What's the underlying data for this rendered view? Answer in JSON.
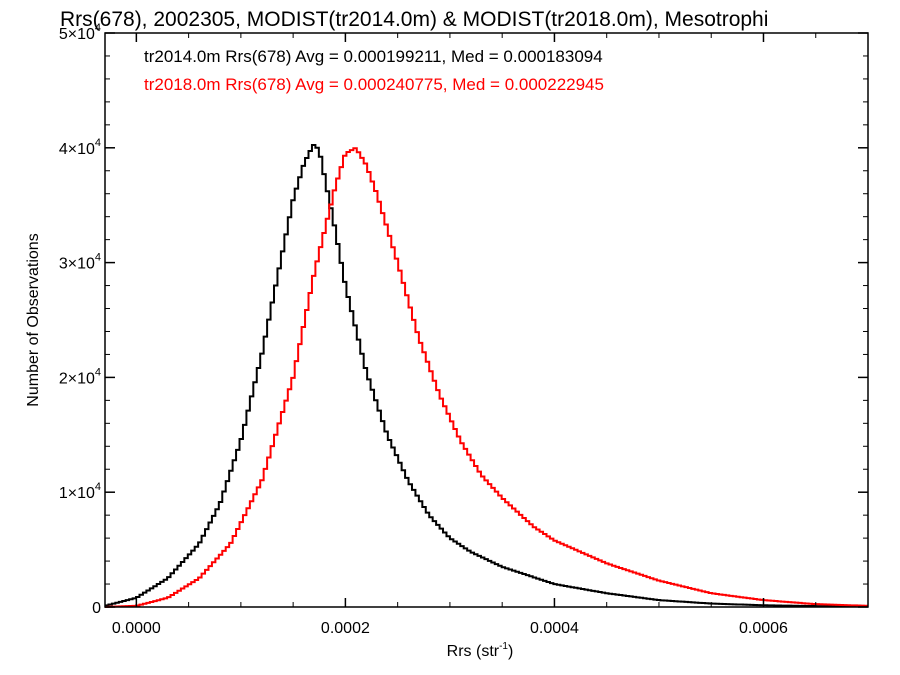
{
  "chart_data": {
    "type": "line",
    "title": "Rrs(678), 2002305, MODIST(tr2014.0m) & MODIST(tr2018.0m), Mesotrophi",
    "xlabel_base": "Rrs (str",
    "xlabel_sup": "-1",
    "xlabel_close": ")",
    "ylabel": "Number of Observations",
    "xlim": [
      -3e-05,
      0.0007
    ],
    "ylim": [
      0,
      50000
    ],
    "x_ticks": [
      {
        "value": 0.0,
        "label": "0.0000"
      },
      {
        "value": 0.0002,
        "label": "0.0002"
      },
      {
        "value": 0.0004,
        "label": "0.0004"
      },
      {
        "value": 0.0006,
        "label": "0.0006"
      }
    ],
    "y_ticks": [
      {
        "value": 0,
        "base": "0",
        "exp": ""
      },
      {
        "value": 10000,
        "base": "1×10",
        "exp": "4"
      },
      {
        "value": 20000,
        "base": "2×10",
        "exp": "4"
      },
      {
        "value": 30000,
        "base": "3×10",
        "exp": "4"
      },
      {
        "value": 40000,
        "base": "4×10",
        "exp": "4"
      },
      {
        "value": 50000,
        "base": "5×10",
        "exp": "4"
      }
    ],
    "series": [
      {
        "name": "tr2014.0m",
        "color": "#000000",
        "stat_text": "tr2014.0m Rrs(678) Avg = 0.000199211, Med = 0.000183094",
        "x": [
          -3e-05,
          0.0,
          3e-05,
          6e-05,
          8e-05,
          0.0001,
          0.00012,
          0.00014,
          0.00015,
          0.00016,
          0.000165,
          0.00017,
          0.000175,
          0.00018,
          0.00019,
          0.0002,
          0.00022,
          0.00024,
          0.00026,
          0.00028,
          0.0003,
          0.00032,
          0.00035,
          0.0004,
          0.00045,
          0.0005,
          0.00055,
          0.0006,
          0.00065,
          0.0007
        ],
        "y": [
          100,
          800,
          2500,
          5500,
          9000,
          14500,
          22000,
          31000,
          35500,
          38500,
          39500,
          40300,
          39800,
          37500,
          33000,
          28000,
          20500,
          15000,
          11000,
          8000,
          6000,
          4800,
          3500,
          2000,
          1200,
          600,
          300,
          150,
          80,
          50
        ]
      },
      {
        "name": "tr2018.0m",
        "color": "#ff0000",
        "stat_text": "tr2018.0m Rrs(678) Avg = 0.000240775, Med = 0.000222945",
        "x": [
          -3e-05,
          0.0,
          3e-05,
          6e-05,
          9e-05,
          0.00012,
          0.00015,
          0.00017,
          0.00019,
          0.0002,
          0.00021,
          0.00022,
          0.00023,
          0.00025,
          0.00027,
          0.00029,
          0.00031,
          0.00033,
          0.00035,
          0.00038,
          0.0004,
          0.00045,
          0.0005,
          0.00055,
          0.0006,
          0.00065,
          0.0007
        ],
        "y": [
          0,
          100,
          800,
          2500,
          5500,
          11000,
          20000,
          29000,
          36500,
          39500,
          40000,
          38500,
          36000,
          30000,
          23500,
          18500,
          14500,
          11500,
          9500,
          7000,
          5800,
          3800,
          2300,
          1200,
          600,
          250,
          100
        ]
      }
    ]
  }
}
